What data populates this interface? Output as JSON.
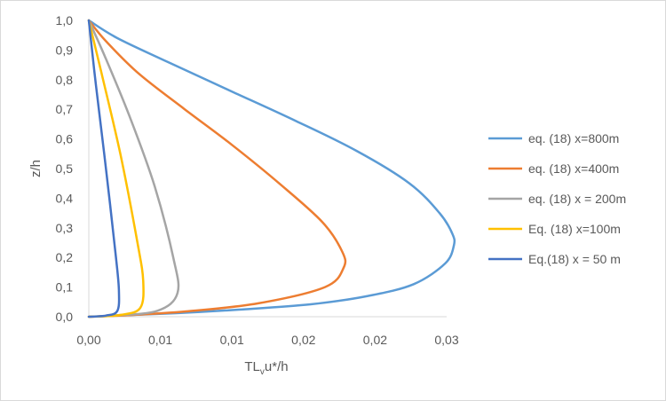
{
  "chart_data": {
    "type": "line",
    "title": "",
    "xlabel": {
      "main": "TL",
      "sub": "v",
      "rest": "u*/h"
    },
    "ylabel": "z/h",
    "xlim": [
      0,
      0.025
    ],
    "ylim": [
      0,
      1
    ],
    "x_tick_values": [
      0,
      0.005,
      0.01,
      0.015,
      0.02,
      0.025
    ],
    "x_tick_labels": [
      "0,00",
      "0,01",
      "0,01",
      "0,02",
      "0,02",
      "0,03"
    ],
    "y_tick_values": [
      0,
      0.1,
      0.2,
      0.3,
      0.4,
      0.5,
      0.6,
      0.7,
      0.8,
      0.9,
      1.0
    ],
    "y_tick_labels": [
      "0,0",
      "0,1",
      "0,2",
      "0,3",
      "0,4",
      "0,5",
      "0,6",
      "0,7",
      "0,8",
      "0,9",
      "1,0"
    ],
    "grid": false,
    "legend_position": "right",
    "series": [
      {
        "name": "eq. (18) x=800m",
        "color": "#5b9bd5",
        "x": [
          0,
          0.0061,
          0.0105,
          0.0155,
          0.0195,
          0.0227,
          0.0249,
          0.0255,
          0.0254,
          0.0245,
          0.0224,
          0.0187,
          0.0145,
          0.01,
          0.0055,
          0.002,
          0
        ],
        "y": [
          0,
          0.012,
          0.024,
          0.042,
          0.07,
          0.11,
          0.18,
          0.24,
          0.28,
          0.35,
          0.45,
          0.56,
          0.66,
          0.76,
          0.86,
          0.94,
          1.0
        ]
      },
      {
        "name": "eq. (18) x=400m",
        "color": "#ed7d31",
        "x": [
          0,
          0.0027,
          0.0068,
          0.0118,
          0.0165,
          0.0178,
          0.0177,
          0.0163,
          0.0133,
          0.01,
          0.0067,
          0.0035,
          0.0012,
          0
        ],
        "y": [
          0,
          0.005,
          0.018,
          0.045,
          0.1,
          0.165,
          0.22,
          0.32,
          0.45,
          0.58,
          0.7,
          0.82,
          0.93,
          1.0
        ]
      },
      {
        "name": "eq. (18) x = 200m",
        "color": "#a5a5a5",
        "x": [
          0,
          0.0016,
          0.0048,
          0.0062,
          0.0059,
          0.0046,
          0.0029,
          0.0012,
          0
        ],
        "y": [
          0,
          0.004,
          0.02,
          0.08,
          0.2,
          0.44,
          0.67,
          0.87,
          1.0
        ]
      },
      {
        "name": "Eq. (18) x=100m",
        "color": "#ffc000",
        "x": [
          0,
          0.0022,
          0.0036,
          0.0038,
          0.0034,
          0.0022,
          0.0009,
          0
        ],
        "y": [
          0,
          0.006,
          0.03,
          0.12,
          0.25,
          0.55,
          0.82,
          1.0
        ]
      },
      {
        "name": "Eq.(18) x = 50 m",
        "color": "#4472c4",
        "x": [
          0,
          0.0012,
          0.002,
          0.0021,
          0.0019,
          0.0012,
          0.0005,
          0
        ],
        "y": [
          0,
          0.004,
          0.02,
          0.09,
          0.2,
          0.5,
          0.78,
          1.0
        ]
      }
    ]
  }
}
